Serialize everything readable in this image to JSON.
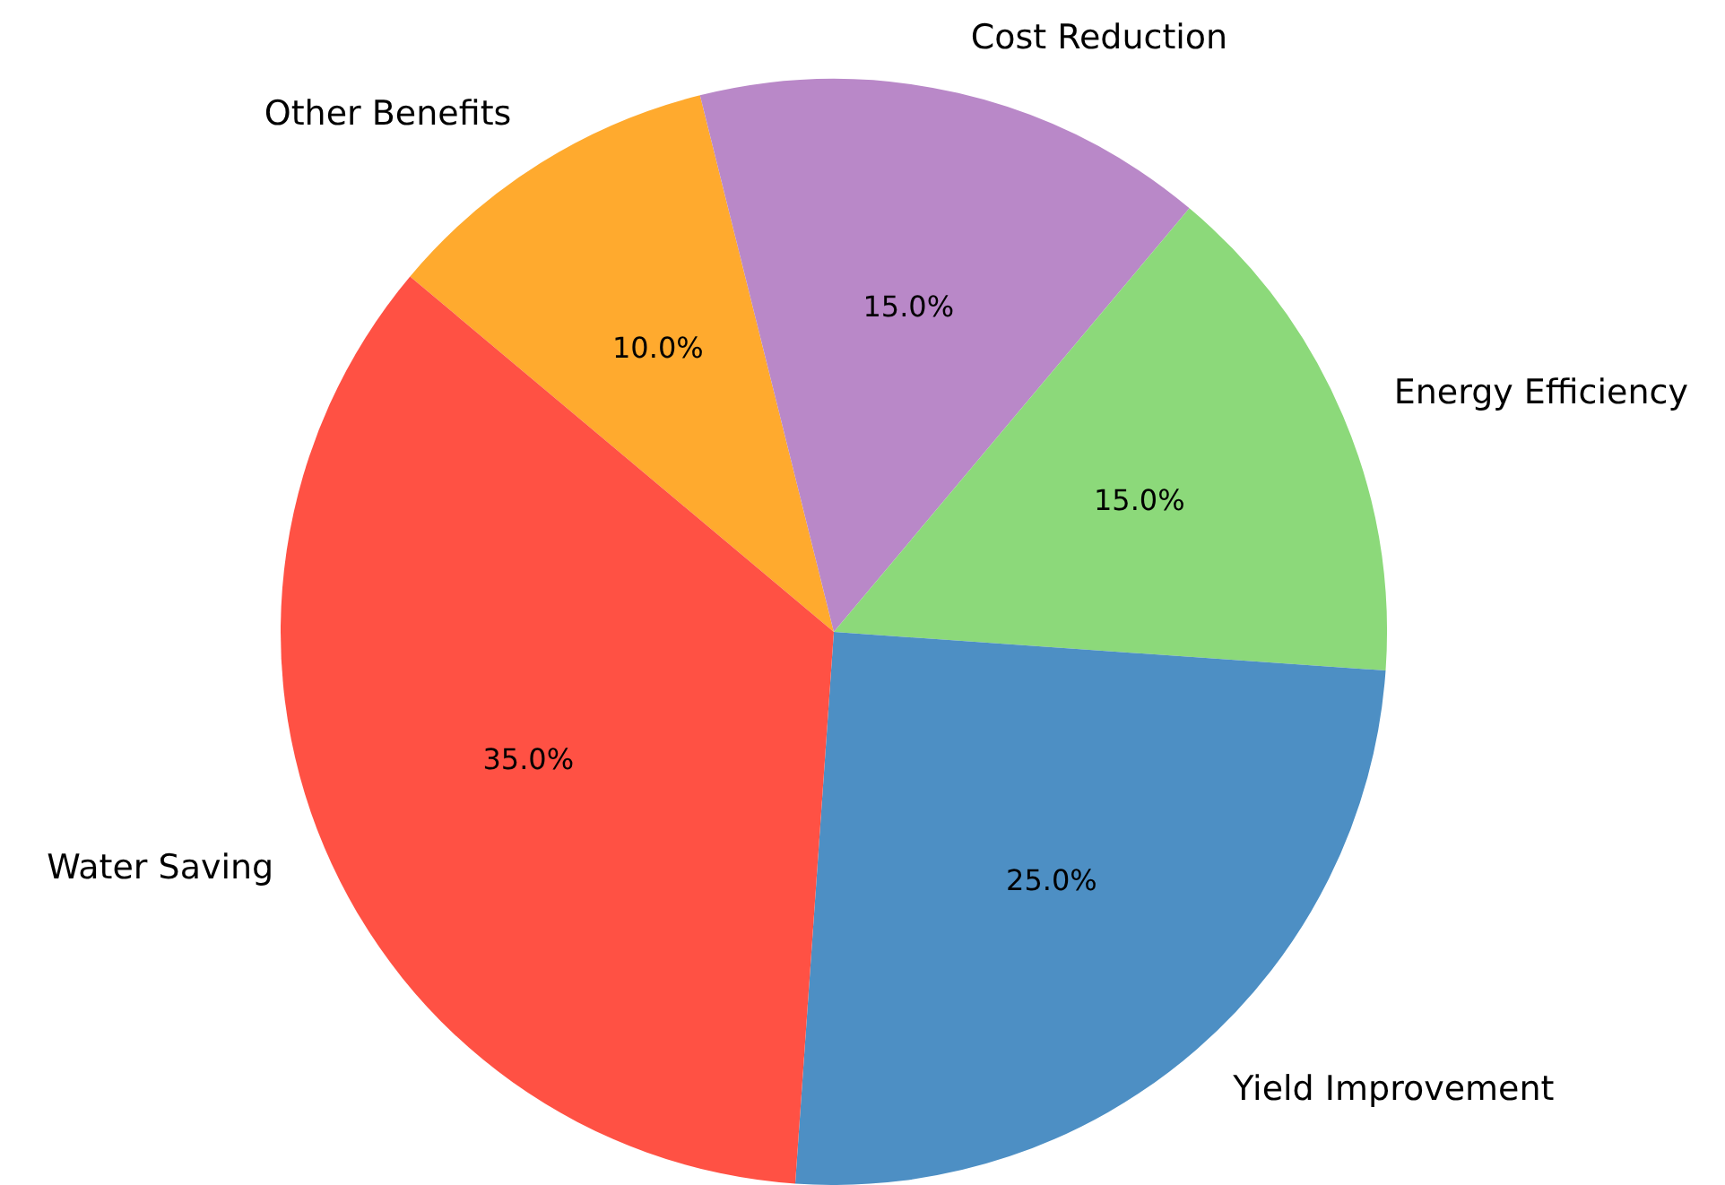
{
  "chart_data": {
    "type": "pie",
    "categories": [
      "Water Saving",
      "Yield Improvement",
      "Energy Efficiency",
      "Cost Reduction",
      "Other Benefits"
    ],
    "values": [
      35,
      25,
      15,
      15,
      10
    ],
    "value_labels": [
      "35.0%",
      "25.0%",
      "15.0%",
      "15.0%",
      "10.0%"
    ],
    "colors": [
      "#ff5144",
      "#4d8fc4",
      "#8cd97a",
      "#b988c8",
      "#ffaa2e"
    ],
    "legend": false
  }
}
